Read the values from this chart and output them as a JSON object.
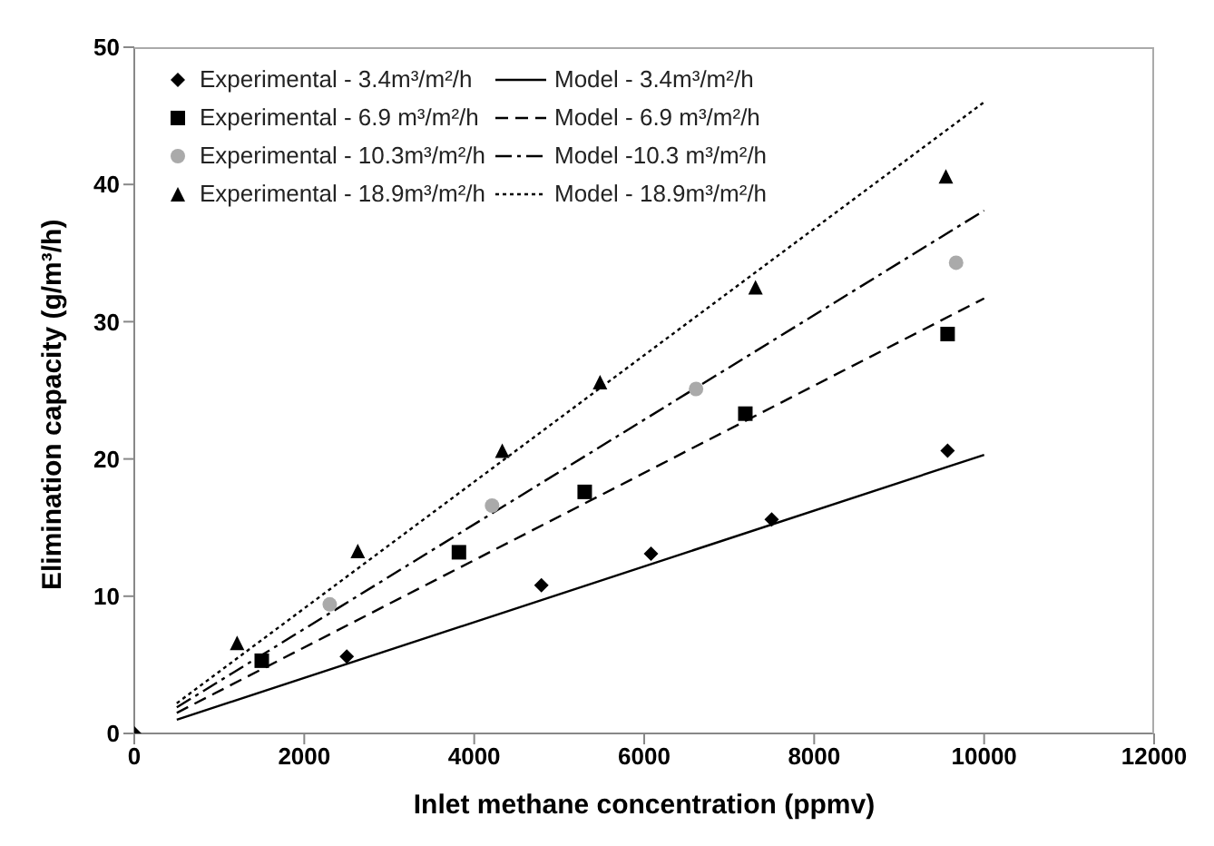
{
  "chart_data": {
    "type": "scatter",
    "xlabel": "Inlet methane concentration (ppmv)",
    "ylabel": "Elimination capacity (g/m³/h)",
    "xlim": [
      0,
      12000
    ],
    "ylim": [
      0,
      50
    ],
    "xticks": [
      0,
      2000,
      4000,
      6000,
      8000,
      10000,
      12000
    ],
    "yticks": [
      0,
      10,
      20,
      30,
      40,
      50
    ],
    "grid": false,
    "legend": "top left",
    "series": [
      {
        "name": "Experimental - 3.4m³/m²/h",
        "marker": "diamond",
        "color": "#000000",
        "x": [
          0,
          2500,
          4790,
          6080,
          7500,
          9570
        ],
        "values": [
          0,
          5.6,
          10.8,
          13.1,
          15.6,
          20.6
        ]
      },
      {
        "name": "Model - 3.4m³/m²/h",
        "type": "line",
        "line_style": "solid",
        "marker": "none",
        "color": "#000000",
        "x": [
          500,
          10000
        ],
        "values": [
          1.0,
          20.3
        ]
      },
      {
        "name": "Experimental - 6.9 m³/m²/h",
        "marker": "square",
        "color": "#000000",
        "x": [
          1500,
          3820,
          5300,
          7190,
          9570
        ],
        "values": [
          5.3,
          13.2,
          17.6,
          23.3,
          29.1
        ]
      },
      {
        "name": "Model - 6.9 m³/m²/h",
        "type": "line",
        "line_style": "dashed",
        "marker": "none",
        "color": "#000000",
        "x": [
          500,
          10000
        ],
        "values": [
          1.5,
          31.7
        ]
      },
      {
        "name": "Experimental - 10.3m³/m²/h",
        "marker": "circle",
        "color": "#aaaaaa",
        "x": [
          2300,
          4210,
          6610,
          9670
        ],
        "values": [
          9.4,
          16.6,
          25.1,
          34.3
        ]
      },
      {
        "name": "Model -10.3 m³/m²/h",
        "type": "line",
        "line_style": "dashdot",
        "marker": "none",
        "color": "#000000",
        "x": [
          500,
          10000
        ],
        "values": [
          1.9,
          38.1
        ]
      },
      {
        "name": "Experimental - 18.9m³/m²/h",
        "marker": "triangle",
        "color": "#000000",
        "x": [
          1210,
          2630,
          4330,
          5480,
          7310,
          9550
        ],
        "values": [
          6.6,
          13.3,
          20.6,
          25.6,
          32.5,
          40.6
        ]
      },
      {
        "name": "Model - 18.9m³/m²/h",
        "type": "line",
        "line_style": "dotted",
        "marker": "none",
        "color": "#000000",
        "x": [
          500,
          10000
        ],
        "values": [
          2.2,
          46.0
        ]
      }
    ]
  }
}
